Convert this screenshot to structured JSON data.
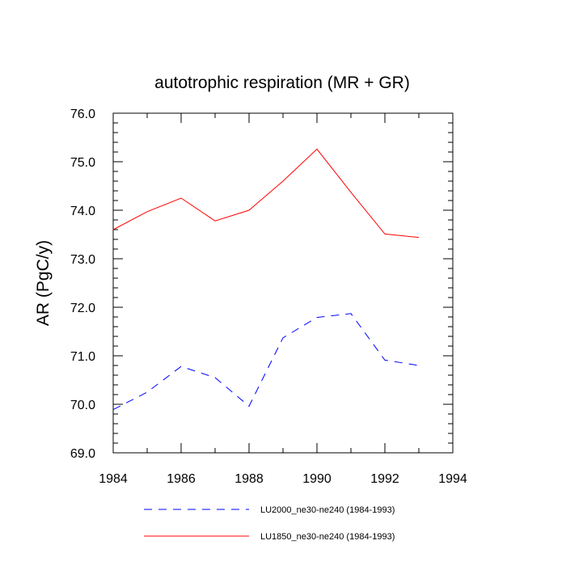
{
  "chart_data": {
    "type": "line",
    "title": "autotrophic respiration (MR + GR)",
    "xlabel": "",
    "ylabel": "AR  (PgC/y)",
    "xlim": [
      1984,
      1994
    ],
    "ylim": [
      69.0,
      76.0
    ],
    "x_major_ticks": [
      1984,
      1986,
      1988,
      1990,
      1992,
      1994
    ],
    "x_tick_labels": [
      "1984",
      "1986",
      "1988",
      "1990",
      "1992",
      "1994"
    ],
    "x_minor_step": 1,
    "y_major_ticks": [
      69.0,
      70.0,
      71.0,
      72.0,
      73.0,
      74.0,
      75.0,
      76.0
    ],
    "y_tick_labels": [
      "69.0",
      "70.0",
      "71.0",
      "72.0",
      "73.0",
      "74.0",
      "75.0",
      "76.0"
    ],
    "y_minor_step": 0.2,
    "grid": false,
    "legend_position": "bottom",
    "series": [
      {
        "name": "LU2000_ne30-ne240 (1984-1993)",
        "color": "#0000ff",
        "style": "dashed",
        "x": [
          1984,
          1985,
          1986,
          1987,
          1988,
          1989,
          1990,
          1991,
          1992,
          1993
        ],
        "values": [
          69.89,
          70.25,
          70.78,
          70.55,
          69.96,
          71.37,
          71.79,
          71.87,
          70.91,
          70.8
        ]
      },
      {
        "name": "LU1850_ne30-ne240 (1984-1993)",
        "color": "#ff0000",
        "style": "solid",
        "x": [
          1984,
          1985,
          1986,
          1987,
          1988,
          1989,
          1990,
          1991,
          1992,
          1993
        ],
        "values": [
          73.6,
          73.97,
          74.25,
          73.78,
          74.0,
          74.6,
          75.26,
          74.37,
          73.51,
          73.44
        ]
      }
    ]
  }
}
